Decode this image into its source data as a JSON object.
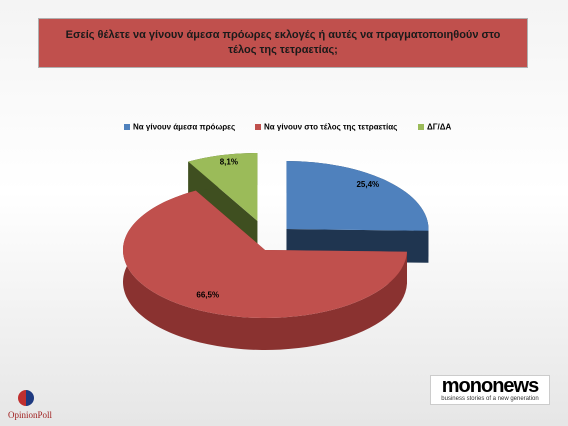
{
  "chart_data": {
    "type": "pie3d",
    "title": "Εσείς θέλετε να γίνουν άμεσα πρόωρες εκλογές ή αυτές να πραγματοποιηθούν στο τέλος της τετραετίας;",
    "categories": [
      "Να γίνουν άμεσα πρόωρες",
      "Να γίνουν στο τέλος της τετραετίας",
      "ΔΓ/ΔΑ"
    ],
    "values": [
      25.4,
      66.5,
      8.1
    ],
    "value_labels": [
      "25,4%",
      "66,5%",
      "8,1%"
    ],
    "colors": [
      "#4f81bd",
      "#c0504d",
      "#9bbb59"
    ],
    "side_colors": [
      "#1f3550",
      "#8a3230",
      "#3f4f20"
    ],
    "exploded": [
      true,
      false,
      true
    ],
    "legend": "top"
  },
  "logos": {
    "left": "OpinionPoll",
    "right": "mononews",
    "right_tagline": "business stories of a new generation"
  }
}
